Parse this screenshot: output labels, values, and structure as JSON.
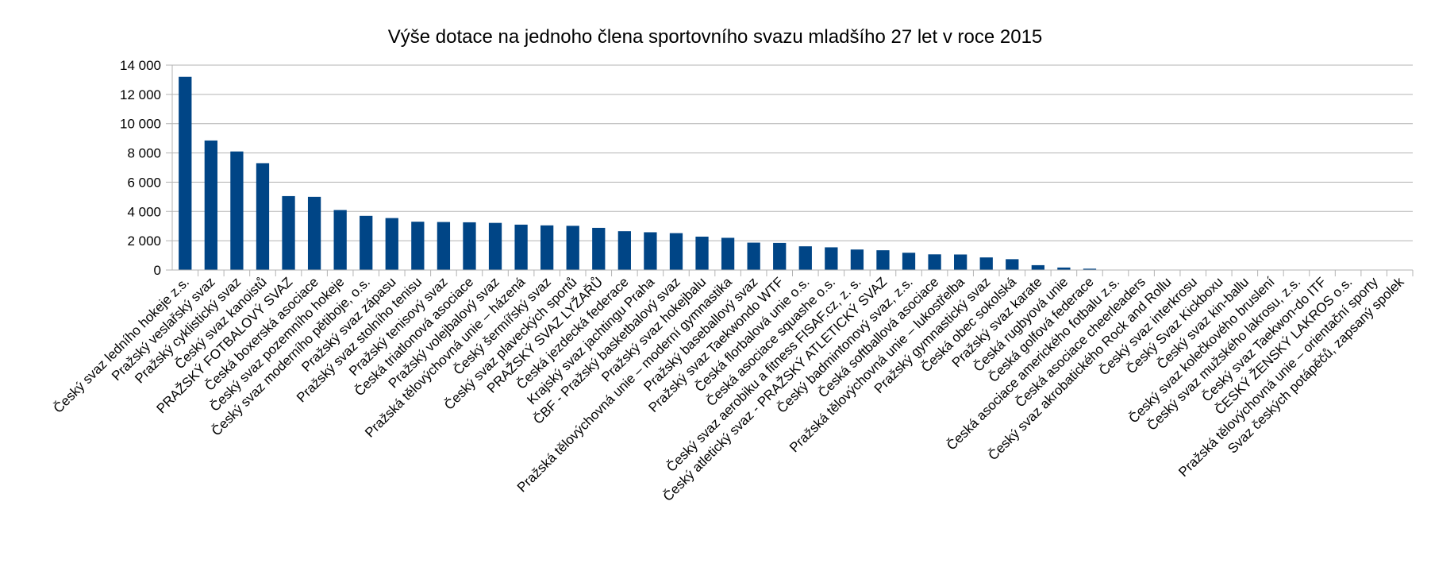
{
  "chart_data": {
    "type": "bar",
    "title": "Výše dotace na jednoho člena sportovního svazu mladšího 27 let v roce 2015",
    "xlabel": "",
    "ylabel": "",
    "ylim": [
      0,
      14000
    ],
    "yticks": [
      0,
      2000,
      4000,
      6000,
      8000,
      10000,
      12000,
      14000
    ],
    "ytick_labels": [
      "0",
      "2 000",
      "4 000",
      "6 000",
      "8 000",
      "10 000",
      "12 000",
      "14 000"
    ],
    "grid": true,
    "legend": "none",
    "bar_color": "#004586",
    "categories": [
      "Český svaz ledního hokeje z.s.",
      "Pražský veslařský svaz",
      "Pražský cyklistický svaz",
      "Český svaz kanoistů",
      "PRAŽSKÝ FOTBALOVÝ SVAZ",
      "Česká boxerská asociace",
      "Český svaz pozemního hokeje",
      "Český svaz moderního pětiboje, o.s.",
      "Pražský svaz zápasu",
      "Pražský svaz stolního tenisu",
      "Pražský tenisový svaz",
      "Česká triatlonová asociace",
      "Pražský volejbalový svaz",
      "Pražská tělovýchovná unie – házená",
      "Český šermířský svaz",
      "Český svaz plaveckých sportů",
      "PRAŽSKÝ SVAZ LYŽAŘŮ",
      "Česká jezdecká federace",
      "Krajský svaz jachtingu Praha",
      "ČBF - Pražský basketbalový svaz",
      "Pražský svaz hokejbalu",
      "Pražská tělovýchovná unie – moderní gymnastika",
      "Pražský baseballový svaz",
      "Pražský svaz Taekwondo WTF",
      "Česká florbalová unie o.s.",
      "Česká asociace squashe o.s.",
      "Český svaz aerobiku a fitness FISAF.cz, z. s.",
      "Český atletický svaz - PRAŽSKÝ ATLETICKÝ SVAZ",
      "Český badmintonový svaz, z.s.",
      "Česká softballová asociace",
      "Pražská tělovýchovná unie – lukostřelba",
      "Pražský gymnastický svaz",
      "Česká obec sokolská",
      "Pražský svaz karate",
      "Česká rugbyová unie",
      "Česká golfová federace",
      "Česká asociace amerického fotbalu z.s.",
      "Česká asociace cheerleaders",
      "Český svaz akrobatického Rock and Rollu",
      "Český svaz interkrosu",
      "Český Svaz Kickboxu",
      "Český svaz kin-ballu",
      "Český svaz kolečkového bruslení",
      "Český svaz mužského lakrosu, z.s.",
      "Český svaz Taekwon-do ITF",
      "ČESKÝ ŽENSKÝ LAKROS o.s.",
      "Pražská tělovýchovná unie – orientační sporty",
      "Svaz českých potápěčů, zapsaný spolek"
    ],
    "values": [
      13200,
      8850,
      8100,
      7300,
      5050,
      5000,
      4100,
      3700,
      3550,
      3300,
      3280,
      3260,
      3220,
      3100,
      3050,
      3020,
      2880,
      2650,
      2580,
      2520,
      2280,
      2200,
      1870,
      1850,
      1620,
      1550,
      1400,
      1350,
      1180,
      1070,
      1060,
      860,
      740,
      330,
      170,
      90,
      0,
      0,
      0,
      0,
      0,
      0,
      0,
      0,
      0,
      0,
      0,
      0
    ]
  }
}
